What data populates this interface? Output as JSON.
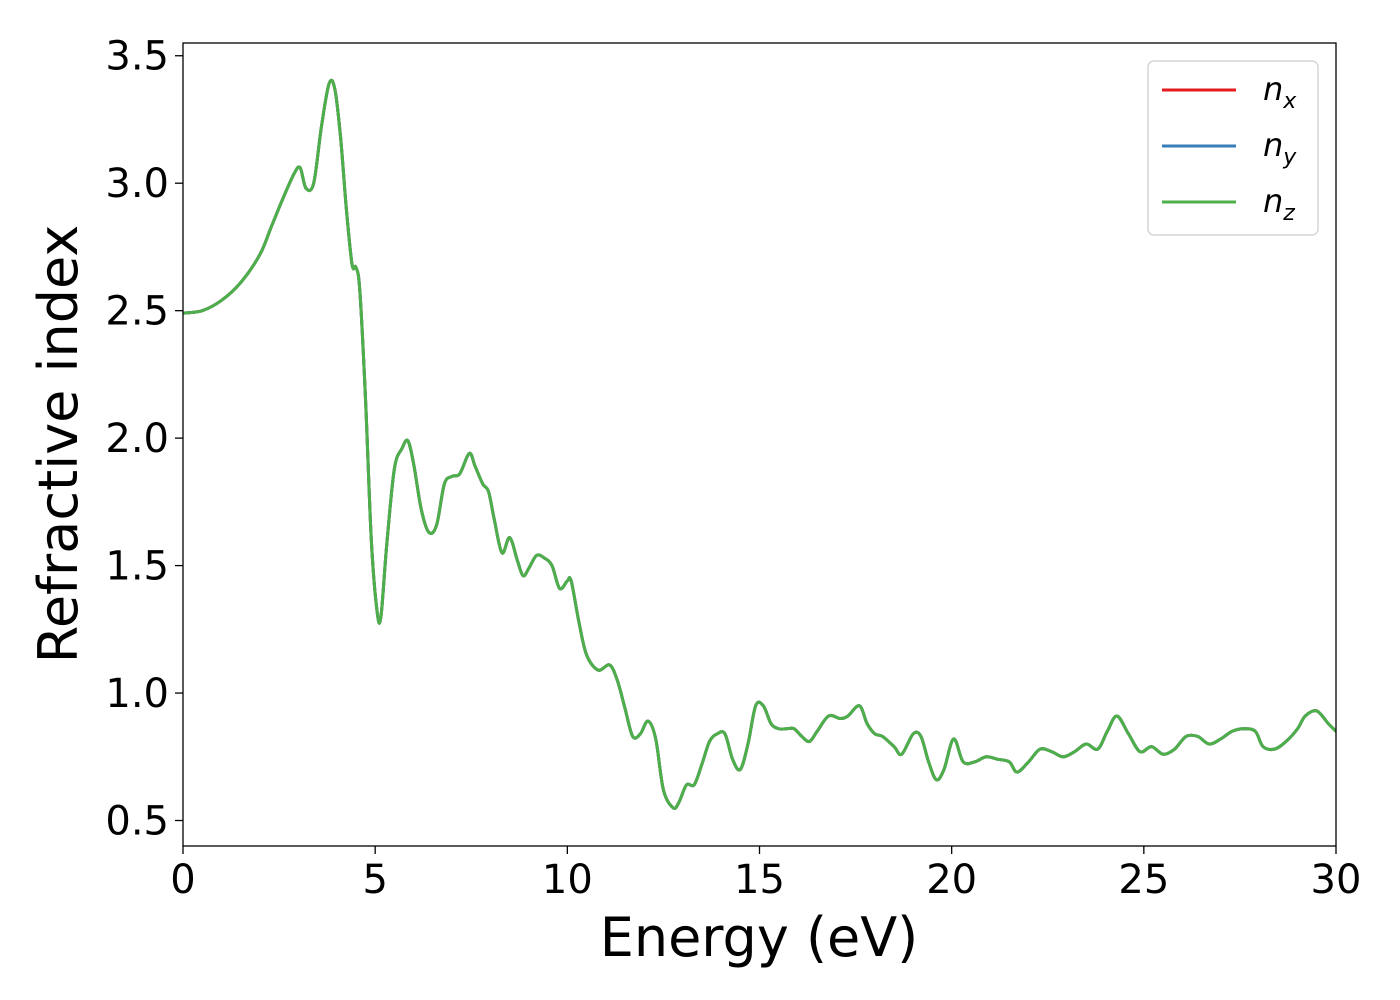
{
  "chart_data": {
    "type": "line",
    "title": "",
    "xlabel": "Energy (eV)",
    "ylabel": "Refractive index",
    "xlim": [
      0,
      30
    ],
    "ylim": [
      0.4,
      3.55
    ],
    "xticks": [
      0,
      5,
      10,
      15,
      20,
      25,
      30
    ],
    "yticks": [
      0.5,
      1.0,
      1.5,
      2.0,
      2.5,
      3.0,
      3.5
    ],
    "xtick_labels": [
      "0",
      "5",
      "10",
      "15",
      "20",
      "25",
      "30"
    ],
    "ytick_labels": [
      "0.5",
      "1.0",
      "1.5",
      "2.0",
      "2.5",
      "3.0",
      "3.5"
    ],
    "grid": false,
    "legend_position": "top-right",
    "series": [
      {
        "name": "n_x",
        "legend_base": "n",
        "legend_sub": "x",
        "color": "#e41a1c",
        "x": [
          0,
          0.5,
          1.0,
          1.5,
          2.0,
          2.3,
          2.6,
          2.9,
          3.05,
          3.2,
          3.4,
          3.6,
          3.8,
          3.95,
          4.1,
          4.25,
          4.4,
          4.5,
          4.6,
          4.75,
          4.9,
          5.05,
          5.15,
          5.3,
          5.5,
          5.7,
          5.85,
          6.0,
          6.2,
          6.4,
          6.6,
          6.8,
          7.0,
          7.2,
          7.45,
          7.6,
          7.8,
          7.95,
          8.1,
          8.3,
          8.5,
          8.7,
          8.85,
          9.0,
          9.2,
          9.4,
          9.6,
          9.8,
          10.0,
          10.1,
          10.3,
          10.5,
          10.8,
          11.1,
          11.3,
          11.5,
          11.7,
          11.9,
          12.1,
          12.3,
          12.5,
          12.75,
          12.9,
          13.1,
          13.3,
          13.5,
          13.7,
          13.9,
          14.1,
          14.3,
          14.5,
          14.7,
          14.9,
          15.1,
          15.3,
          15.5,
          15.7,
          15.9,
          16.1,
          16.3,
          16.5,
          16.8,
          17.1,
          17.3,
          17.6,
          17.8,
          18.0,
          18.2,
          18.5,
          18.7,
          19.0,
          19.2,
          19.4,
          19.6,
          19.8,
          20.05,
          20.3,
          20.6,
          20.9,
          21.2,
          21.5,
          21.7,
          22.0,
          22.3,
          22.6,
          22.9,
          23.2,
          23.5,
          23.8,
          24.05,
          24.3,
          24.6,
          24.9,
          25.2,
          25.5,
          25.8,
          26.1,
          26.4,
          26.7,
          27.0,
          27.3,
          27.6,
          27.9,
          28.1,
          28.4,
          28.7,
          29.0,
          29.2,
          29.5,
          29.8,
          30.0
        ],
        "y": [
          2.49,
          2.5,
          2.54,
          2.61,
          2.72,
          2.83,
          2.94,
          3.04,
          3.06,
          2.98,
          3.0,
          3.22,
          3.39,
          3.37,
          3.18,
          2.9,
          2.68,
          2.67,
          2.58,
          2.15,
          1.6,
          1.32,
          1.3,
          1.58,
          1.88,
          1.96,
          1.99,
          1.9,
          1.72,
          1.63,
          1.66,
          1.82,
          1.85,
          1.86,
          1.94,
          1.89,
          1.82,
          1.79,
          1.68,
          1.55,
          1.61,
          1.52,
          1.46,
          1.49,
          1.54,
          1.53,
          1.5,
          1.41,
          1.44,
          1.44,
          1.28,
          1.15,
          1.09,
          1.11,
          1.05,
          0.94,
          0.83,
          0.84,
          0.89,
          0.82,
          0.62,
          0.55,
          0.57,
          0.64,
          0.64,
          0.72,
          0.81,
          0.84,
          0.84,
          0.74,
          0.7,
          0.8,
          0.95,
          0.95,
          0.88,
          0.86,
          0.86,
          0.86,
          0.83,
          0.81,
          0.85,
          0.91,
          0.9,
          0.91,
          0.95,
          0.88,
          0.84,
          0.83,
          0.79,
          0.76,
          0.84,
          0.83,
          0.73,
          0.66,
          0.7,
          0.82,
          0.73,
          0.73,
          0.75,
          0.74,
          0.73,
          0.69,
          0.73,
          0.78,
          0.77,
          0.75,
          0.77,
          0.8,
          0.78,
          0.85,
          0.91,
          0.84,
          0.77,
          0.79,
          0.76,
          0.78,
          0.83,
          0.83,
          0.8,
          0.82,
          0.85,
          0.86,
          0.85,
          0.79,
          0.78,
          0.81,
          0.86,
          0.91,
          0.93,
          0.88,
          0.85
        ]
      },
      {
        "name": "n_y",
        "legend_base": "n",
        "legend_sub": "y",
        "color": "#377eb8",
        "x": [
          0,
          0.5,
          1.0,
          1.5,
          2.0,
          2.3,
          2.6,
          2.9,
          3.05,
          3.2,
          3.4,
          3.6,
          3.8,
          3.95,
          4.1,
          4.25,
          4.4,
          4.5,
          4.6,
          4.75,
          4.9,
          5.05,
          5.15,
          5.3,
          5.5,
          5.7,
          5.85,
          6.0,
          6.2,
          6.4,
          6.6,
          6.8,
          7.0,
          7.2,
          7.45,
          7.6,
          7.8,
          7.95,
          8.1,
          8.3,
          8.5,
          8.7,
          8.85,
          9.0,
          9.2,
          9.4,
          9.6,
          9.8,
          10.0,
          10.1,
          10.3,
          10.5,
          10.8,
          11.1,
          11.3,
          11.5,
          11.7,
          11.9,
          12.1,
          12.3,
          12.5,
          12.75,
          12.9,
          13.1,
          13.3,
          13.5,
          13.7,
          13.9,
          14.1,
          14.3,
          14.5,
          14.7,
          14.9,
          15.1,
          15.3,
          15.5,
          15.7,
          15.9,
          16.1,
          16.3,
          16.5,
          16.8,
          17.1,
          17.3,
          17.6,
          17.8,
          18.0,
          18.2,
          18.5,
          18.7,
          19.0,
          19.2,
          19.4,
          19.6,
          19.8,
          20.05,
          20.3,
          20.6,
          20.9,
          21.2,
          21.5,
          21.7,
          22.0,
          22.3,
          22.6,
          22.9,
          23.2,
          23.5,
          23.8,
          24.05,
          24.3,
          24.6,
          24.9,
          25.2,
          25.5,
          25.8,
          26.1,
          26.4,
          26.7,
          27.0,
          27.3,
          27.6,
          27.9,
          28.1,
          28.4,
          28.7,
          29.0,
          29.2,
          29.5,
          29.8,
          30.0
        ],
        "y": [
          2.49,
          2.5,
          2.54,
          2.61,
          2.72,
          2.83,
          2.94,
          3.04,
          3.06,
          2.98,
          3.0,
          3.22,
          3.39,
          3.37,
          3.18,
          2.9,
          2.68,
          2.67,
          2.58,
          2.15,
          1.6,
          1.32,
          1.3,
          1.58,
          1.88,
          1.96,
          1.99,
          1.9,
          1.72,
          1.63,
          1.66,
          1.82,
          1.85,
          1.86,
          1.94,
          1.89,
          1.82,
          1.79,
          1.68,
          1.55,
          1.61,
          1.52,
          1.46,
          1.49,
          1.54,
          1.53,
          1.5,
          1.41,
          1.44,
          1.44,
          1.28,
          1.15,
          1.09,
          1.11,
          1.05,
          0.94,
          0.83,
          0.84,
          0.89,
          0.82,
          0.62,
          0.55,
          0.57,
          0.64,
          0.64,
          0.72,
          0.81,
          0.84,
          0.84,
          0.74,
          0.7,
          0.8,
          0.95,
          0.95,
          0.88,
          0.86,
          0.86,
          0.86,
          0.83,
          0.81,
          0.85,
          0.91,
          0.9,
          0.91,
          0.95,
          0.88,
          0.84,
          0.83,
          0.79,
          0.76,
          0.84,
          0.83,
          0.73,
          0.66,
          0.7,
          0.82,
          0.73,
          0.73,
          0.75,
          0.74,
          0.73,
          0.69,
          0.73,
          0.78,
          0.77,
          0.75,
          0.77,
          0.8,
          0.78,
          0.85,
          0.91,
          0.84,
          0.77,
          0.79,
          0.76,
          0.78,
          0.83,
          0.83,
          0.8,
          0.82,
          0.85,
          0.86,
          0.85,
          0.79,
          0.78,
          0.81,
          0.86,
          0.91,
          0.93,
          0.88,
          0.85
        ]
      },
      {
        "name": "n_z",
        "legend_base": "n",
        "legend_sub": "z",
        "color": "#4daf4a",
        "x": [
          0,
          0.5,
          1.0,
          1.5,
          2.0,
          2.3,
          2.6,
          2.9,
          3.05,
          3.2,
          3.4,
          3.6,
          3.8,
          3.95,
          4.1,
          4.25,
          4.4,
          4.5,
          4.6,
          4.75,
          4.9,
          5.05,
          5.15,
          5.3,
          5.5,
          5.7,
          5.85,
          6.0,
          6.2,
          6.4,
          6.6,
          6.8,
          7.0,
          7.2,
          7.45,
          7.6,
          7.8,
          7.95,
          8.1,
          8.3,
          8.5,
          8.7,
          8.85,
          9.0,
          9.2,
          9.4,
          9.6,
          9.8,
          10.0,
          10.1,
          10.3,
          10.5,
          10.8,
          11.1,
          11.3,
          11.5,
          11.7,
          11.9,
          12.1,
          12.3,
          12.5,
          12.75,
          12.9,
          13.1,
          13.3,
          13.5,
          13.7,
          13.9,
          14.1,
          14.3,
          14.5,
          14.7,
          14.9,
          15.1,
          15.3,
          15.5,
          15.7,
          15.9,
          16.1,
          16.3,
          16.5,
          16.8,
          17.1,
          17.3,
          17.6,
          17.8,
          18.0,
          18.2,
          18.5,
          18.7,
          19.0,
          19.2,
          19.4,
          19.6,
          19.8,
          20.05,
          20.3,
          20.6,
          20.9,
          21.2,
          21.5,
          21.7,
          22.0,
          22.3,
          22.6,
          22.9,
          23.2,
          23.5,
          23.8,
          24.05,
          24.3,
          24.6,
          24.9,
          25.2,
          25.5,
          25.8,
          26.1,
          26.4,
          26.7,
          27.0,
          27.3,
          27.6,
          27.9,
          28.1,
          28.4,
          28.7,
          29.0,
          29.2,
          29.5,
          29.8,
          30.0
        ],
        "y": [
          2.49,
          2.5,
          2.54,
          2.61,
          2.72,
          2.83,
          2.94,
          3.04,
          3.06,
          2.98,
          3.0,
          3.22,
          3.39,
          3.37,
          3.18,
          2.9,
          2.68,
          2.67,
          2.58,
          2.15,
          1.6,
          1.32,
          1.3,
          1.58,
          1.88,
          1.96,
          1.99,
          1.9,
          1.72,
          1.63,
          1.66,
          1.82,
          1.85,
          1.86,
          1.94,
          1.89,
          1.82,
          1.79,
          1.68,
          1.55,
          1.61,
          1.52,
          1.46,
          1.49,
          1.54,
          1.53,
          1.5,
          1.41,
          1.44,
          1.44,
          1.28,
          1.15,
          1.09,
          1.11,
          1.05,
          0.94,
          0.83,
          0.84,
          0.89,
          0.82,
          0.62,
          0.55,
          0.57,
          0.64,
          0.64,
          0.72,
          0.81,
          0.84,
          0.84,
          0.74,
          0.7,
          0.8,
          0.95,
          0.95,
          0.88,
          0.86,
          0.86,
          0.86,
          0.83,
          0.81,
          0.85,
          0.91,
          0.9,
          0.91,
          0.95,
          0.88,
          0.84,
          0.83,
          0.79,
          0.76,
          0.84,
          0.83,
          0.73,
          0.66,
          0.7,
          0.82,
          0.73,
          0.73,
          0.75,
          0.74,
          0.73,
          0.69,
          0.73,
          0.78,
          0.77,
          0.75,
          0.77,
          0.8,
          0.78,
          0.85,
          0.91,
          0.84,
          0.77,
          0.79,
          0.76,
          0.78,
          0.83,
          0.83,
          0.8,
          0.82,
          0.85,
          0.86,
          0.85,
          0.79,
          0.78,
          0.81,
          0.86,
          0.91,
          0.93,
          0.88,
          0.85
        ]
      }
    ]
  }
}
